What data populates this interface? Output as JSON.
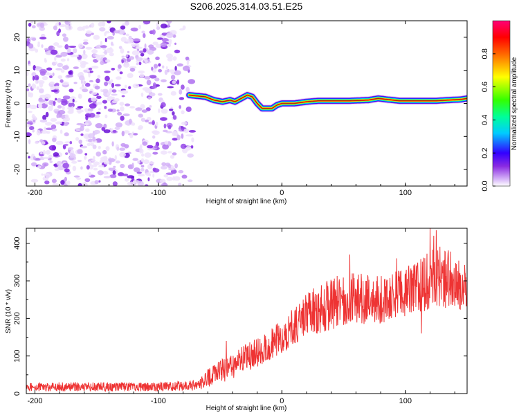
{
  "title": "S206.2025.314.03.51.E25",
  "chart_data": [
    {
      "type": "heatmap",
      "name": "spectrogram",
      "xlabel": "Height of straight line (km)",
      "ylabel": "Frequency (Hz)",
      "xlim": [
        -207,
        150
      ],
      "ylim": [
        -25,
        25
      ],
      "xticks": [
        -200,
        -100,
        0,
        100
      ],
      "xtick_labels": [
        "-200",
        "-100",
        "0",
        "100"
      ],
      "yticks": [
        -20,
        -10,
        0,
        10,
        20
      ],
      "ytick_labels": [
        "-20",
        "-10",
        "0",
        "10",
        "20"
      ],
      "noise_region_x": [
        -207,
        -72
      ],
      "ridge": {
        "x": [
          -75,
          -62,
          -55,
          -48,
          -42,
          -38,
          -33,
          -28,
          -24,
          -20,
          -16,
          -12,
          -8,
          -4,
          0,
          5,
          10,
          20,
          30,
          40,
          55,
          70,
          78,
          85,
          95,
          105,
          115,
          125,
          135,
          145,
          150
        ],
        "freq": [
          2.5,
          2.0,
          1.0,
          0.5,
          1.0,
          0.5,
          1.5,
          2.5,
          2.0,
          0.0,
          -1.5,
          -1.5,
          -1.5,
          -0.5,
          0.0,
          0.0,
          0.0,
          0.5,
          0.8,
          0.8,
          0.8,
          1.0,
          1.5,
          1.2,
          0.8,
          0.8,
          0.8,
          0.8,
          1.0,
          1.2,
          1.5
        ]
      },
      "colorbar": {
        "label": "Normalized spectral amplitude",
        "ticks": [
          0.0,
          0.2,
          0.4,
          0.6,
          0.8
        ],
        "tick_labels": [
          "0.0",
          "0.2",
          "0.4",
          "0.6",
          "0.8"
        ],
        "range": [
          0,
          1
        ]
      }
    },
    {
      "type": "line",
      "name": "snr",
      "xlabel": "Height of straight line (km)",
      "ylabel": "SNR (10 * v/v)",
      "xlim": [
        -207,
        150
      ],
      "ylim": [
        0,
        440
      ],
      "xticks": [
        -200,
        -100,
        0,
        100
      ],
      "xtick_labels": [
        "-200",
        "-100",
        "0",
        "100"
      ],
      "yticks": [
        0,
        100,
        200,
        300,
        400
      ],
      "ytick_labels": [
        "0",
        "100",
        "200",
        "300",
        "400"
      ],
      "series": [
        {
          "name": "SNR",
          "color": "#ee3333",
          "trend_x": [
            -207,
            -150,
            -100,
            -70,
            -60,
            -40,
            -20,
            0,
            20,
            40,
            60,
            80,
            100,
            120,
            130,
            150
          ],
          "trend_y": [
            18,
            18,
            18,
            22,
            40,
            75,
            110,
            150,
            210,
            240,
            255,
            250,
            270,
            300,
            310,
            290
          ],
          "noise_amp": [
            12,
            12,
            12,
            14,
            25,
            35,
            40,
            45,
            60,
            70,
            70,
            65,
            65,
            80,
            85,
            70
          ],
          "peaks_x": [
            -62,
            -45,
            55,
            93,
            113,
            120,
            123,
            125
          ],
          "peaks_y": [
            55,
            140,
            370,
            360,
            160,
            440,
            420,
            435
          ]
        }
      ]
    }
  ]
}
